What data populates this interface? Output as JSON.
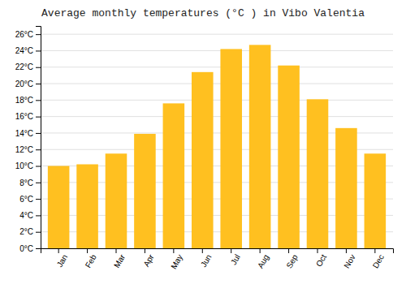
{
  "chart_data": {
    "type": "bar",
    "title": "Average monthly temperatures (°C ) in Vibo Valentia",
    "categories": [
      "Jan",
      "Feb",
      "Mar",
      "Apr",
      "May",
      "Jun",
      "Jul",
      "Aug",
      "Sep",
      "Oct",
      "Nov",
      "Dec"
    ],
    "values": [
      10.0,
      10.2,
      11.5,
      13.9,
      17.6,
      21.4,
      24.2,
      24.7,
      22.2,
      18.1,
      14.6,
      11.5
    ],
    "color": "#FFC020",
    "ylim": [
      0,
      27
    ],
    "yticks": [
      {
        "value": 0,
        "label": "0°C"
      },
      {
        "value": 2,
        "label": "2°C"
      },
      {
        "value": 4,
        "label": "4°C"
      },
      {
        "value": 6,
        "label": "6°C"
      },
      {
        "value": 8,
        "label": "8°C"
      },
      {
        "value": 10,
        "label": "10°C"
      },
      {
        "value": 12,
        "label": "12°C"
      },
      {
        "value": 14,
        "label": "14°C"
      },
      {
        "value": 16,
        "label": "16°C"
      },
      {
        "value": 18,
        "label": "18°C"
      },
      {
        "value": 20,
        "label": "20°C"
      },
      {
        "value": 22,
        "label": "22°C"
      },
      {
        "value": 24,
        "label": "24°C"
      },
      {
        "value": 26,
        "label": "26°C"
      }
    ],
    "grid": true
  }
}
